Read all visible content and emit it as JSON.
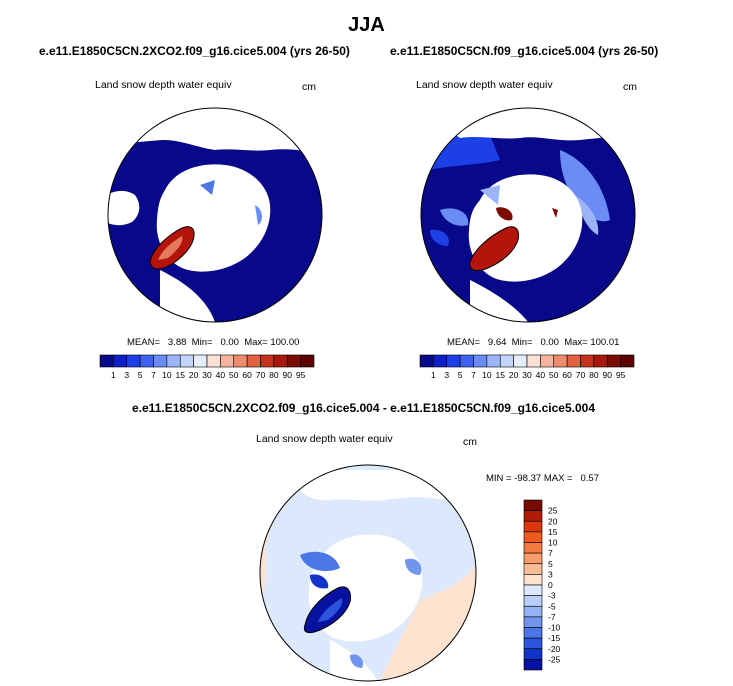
{
  "title": "JJA",
  "panels": [
    {
      "case": "e.e11.E1850C5CN.2XCO2.f09_g16.cice5.004 (yrs 26-50)",
      "variable": "Land snow depth water equiv",
      "units": "cm",
      "stats": "MEAN=   3.88  Min=   0.00  Max= 100.00"
    },
    {
      "case": "e.e11.E1850C5CN.f09_g16.cice5.004 (yrs 26-50)",
      "variable": "Land snow depth water equiv",
      "units": "cm",
      "stats": "MEAN=   9.64  Min=   0.00  Max= 100.01"
    },
    {
      "case": "e.e11.E1850C5CN.2XCO2.f09_g16.cice5.004 - e.e11.E1850C5CN.f09_g16.cice5.004",
      "variable": "Land snow depth water equiv",
      "units": "cm",
      "stats": "MIN = -98.37 MAX =   0.57"
    }
  ],
  "chart_data": [
    {
      "type": "heatmap",
      "projection": "north polar stereographic",
      "title": "Land snow depth water equiv",
      "units": "cm",
      "mean": 3.88,
      "min": 0.0,
      "max": 100.0,
      "colorbar": {
        "orientation": "horizontal",
        "levels": [
          "1",
          "3",
          "5",
          "7",
          "10",
          "15",
          "20",
          "30",
          "40",
          "50",
          "60",
          "70",
          "80",
          "90",
          "95"
        ],
        "colors": [
          "#08088a",
          "#0b1fc4",
          "#1d3fe6",
          "#3f63f0",
          "#6a8df5",
          "#9cb5f8",
          "#c5d4fa",
          "#e6edfc",
          "#fbe0d6",
          "#f7b49e",
          "#f08c6e",
          "#e55f40",
          "#c8301c",
          "#a8180c",
          "#7e0a04",
          "#5c0000"
        ]
      }
    },
    {
      "type": "heatmap",
      "projection": "north polar stereographic",
      "title": "Land snow depth water equiv",
      "units": "cm",
      "mean": 9.64,
      "min": 0.0,
      "max": 100.01,
      "colorbar": {
        "orientation": "horizontal",
        "levels": [
          "1",
          "3",
          "5",
          "7",
          "10",
          "15",
          "20",
          "30",
          "40",
          "50",
          "60",
          "70",
          "80",
          "90",
          "95"
        ],
        "colors": [
          "#08088a",
          "#0b1fc4",
          "#1d3fe6",
          "#3f63f0",
          "#6a8df5",
          "#9cb5f8",
          "#c5d4fa",
          "#e6edfc",
          "#fbe0d6",
          "#f7b49e",
          "#f08c6e",
          "#e55f40",
          "#c8301c",
          "#a8180c",
          "#7e0a04",
          "#5c0000"
        ]
      }
    },
    {
      "type": "heatmap",
      "projection": "north polar stereographic",
      "title": "Land snow depth water equiv",
      "units": "cm",
      "min": -98.37,
      "max": 0.57,
      "colorbar": {
        "orientation": "vertical",
        "levels": [
          "25",
          "20",
          "15",
          "10",
          "7",
          "5",
          "3",
          "0",
          "-3",
          "-5",
          "-7",
          "-10",
          "-15",
          "-20",
          "-25"
        ],
        "colors": [
          "#7a0a04",
          "#b01a08",
          "#d8380c",
          "#ee5a1e",
          "#f57a40",
          "#f79c6a",
          "#f9bd95",
          "#fde3cf",
          "#dce8fb",
          "#b8cff7",
          "#93b3f2",
          "#6f95ec",
          "#4b76e6",
          "#2a55dc",
          "#1234c8",
          "#0812a0"
        ]
      }
    }
  ]
}
